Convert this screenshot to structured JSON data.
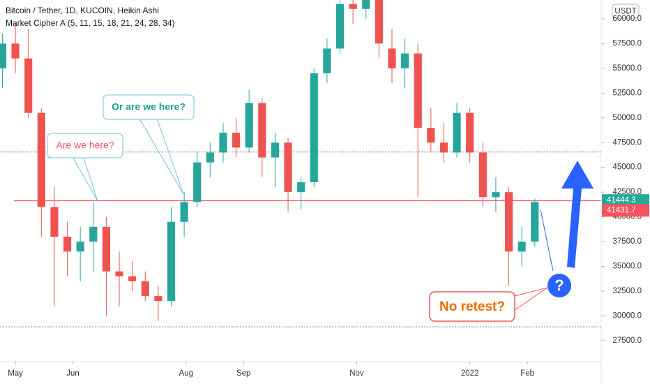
{
  "chart_data": {
    "type": "candlestick",
    "title": "Bitcoin / Tether, 1D, KUCOIN, Heikin Ashi",
    "subtitle": "Market Cipher A (5, 11, 15, 18, 21, 24, 28, 34)",
    "currency": "USDT",
    "x": [
      -7,
      0,
      7,
      14,
      21,
      28,
      35,
      42,
      49,
      56,
      63,
      70,
      77,
      84,
      91,
      98,
      105,
      112,
      119,
      126,
      133,
      140,
      147,
      154,
      161,
      168,
      175,
      182,
      189,
      196,
      203,
      210,
      217,
      224,
      231,
      238,
      245,
      252,
      259,
      266,
      273,
      280
    ],
    "open": [
      55000,
      57500,
      56000,
      50500,
      41000,
      38000,
      36500,
      37500,
      39000,
      34500,
      34000,
      33500,
      32000,
      31500,
      39500,
      41500,
      45500,
      46500,
      48500,
      47000,
      51500,
      46000,
      47500,
      42500,
      43500,
      54500,
      57000,
      61500,
      61000,
      62000,
      57000,
      55000,
      56500,
      49000,
      47500,
      46500,
      50500,
      46500,
      42000,
      42500,
      36500,
      37500
    ],
    "high": [
      58500,
      59500,
      59000,
      51000,
      43000,
      39500,
      39000,
      41500,
      40000,
      36500,
      35500,
      34500,
      33000,
      41000,
      42500,
      46500,
      47500,
      49500,
      50000,
      52800,
      52000,
      48500,
      48000,
      44000,
      55000,
      58000,
      62000,
      62500,
      62500,
      62500,
      59000,
      58000,
      57500,
      51000,
      49500,
      51500,
      51000,
      47500,
      44000,
      43000,
      39000,
      41800
    ],
    "low": [
      53000,
      54500,
      50000,
      38000,
      31000,
      34000,
      33500,
      34500,
      30000,
      31000,
      32500,
      31500,
      29500,
      31000,
      38000,
      41000,
      44000,
      45500,
      46000,
      46500,
      44000,
      43000,
      40500,
      40800,
      43000,
      53500,
      56500,
      59500,
      60000,
      56000,
      53500,
      53000,
      42000,
      46500,
      45500,
      46000,
      45500,
      41000,
      40500,
      33000,
      35000,
      37000
    ],
    "close": [
      57500,
      56000,
      50500,
      41000,
      38000,
      36500,
      37500,
      39000,
      34500,
      34000,
      33500,
      32000,
      31500,
      39500,
      41500,
      45500,
      46500,
      48500,
      47000,
      51500,
      46000,
      47500,
      42500,
      43500,
      54500,
      57000,
      61500,
      61000,
      62000,
      57500,
      55000,
      56500,
      49000,
      47500,
      46500,
      50500,
      46500,
      42000,
      42500,
      36500,
      37500,
      41500
    ],
    "up_color": "#26a69a",
    "down_color": "#ef5350",
    "xlim": [
      -8.3,
      315.8
    ],
    "xticks": [
      {
        "value": 0,
        "label": "May"
      },
      {
        "value": 31,
        "label": "Jun"
      },
      {
        "value": 92,
        "label": "Aug"
      },
      {
        "value": 123,
        "label": "Sep"
      },
      {
        "value": 184,
        "label": "Nov"
      },
      {
        "value": 245,
        "label": "2022"
      },
      {
        "value": 276,
        "label": "Feb"
      }
    ],
    "ylim": [
      25380,
      61900
    ],
    "yticks": [
      {
        "value": 27500,
        "label": "27500.0"
      },
      {
        "value": 30000,
        "label": "30000.0"
      },
      {
        "value": 32500,
        "label": "32500.0"
      },
      {
        "value": 35000,
        "label": "35000.0"
      },
      {
        "value": 37500,
        "label": "37500.0"
      },
      {
        "value": 40000,
        "label": "40000.0"
      },
      {
        "value": 42500,
        "label": "42500.0"
      },
      {
        "value": 45000,
        "label": "45000.0"
      },
      {
        "value": 47500,
        "label": "47500.0"
      },
      {
        "value": 50000,
        "label": "50000.0"
      },
      {
        "value": 52500,
        "label": "52500.0"
      },
      {
        "value": 55000,
        "label": "55000.0"
      },
      {
        "value": 57500,
        "label": "57500.0"
      },
      {
        "value": 60000,
        "label": "60000.0"
      }
    ],
    "level_line": {
      "value": 41620,
      "color": "#f23645"
    },
    "dotted_lines": [
      46550,
      28900
    ],
    "price_labels": [
      {
        "value": 41444.3,
        "color": "#22ab94"
      },
      {
        "value": 41431.7,
        "color": "#f7525f"
      }
    ],
    "annotations": [
      "Are we here?",
      "Or are we here?",
      "No retest?",
      "?"
    ]
  }
}
